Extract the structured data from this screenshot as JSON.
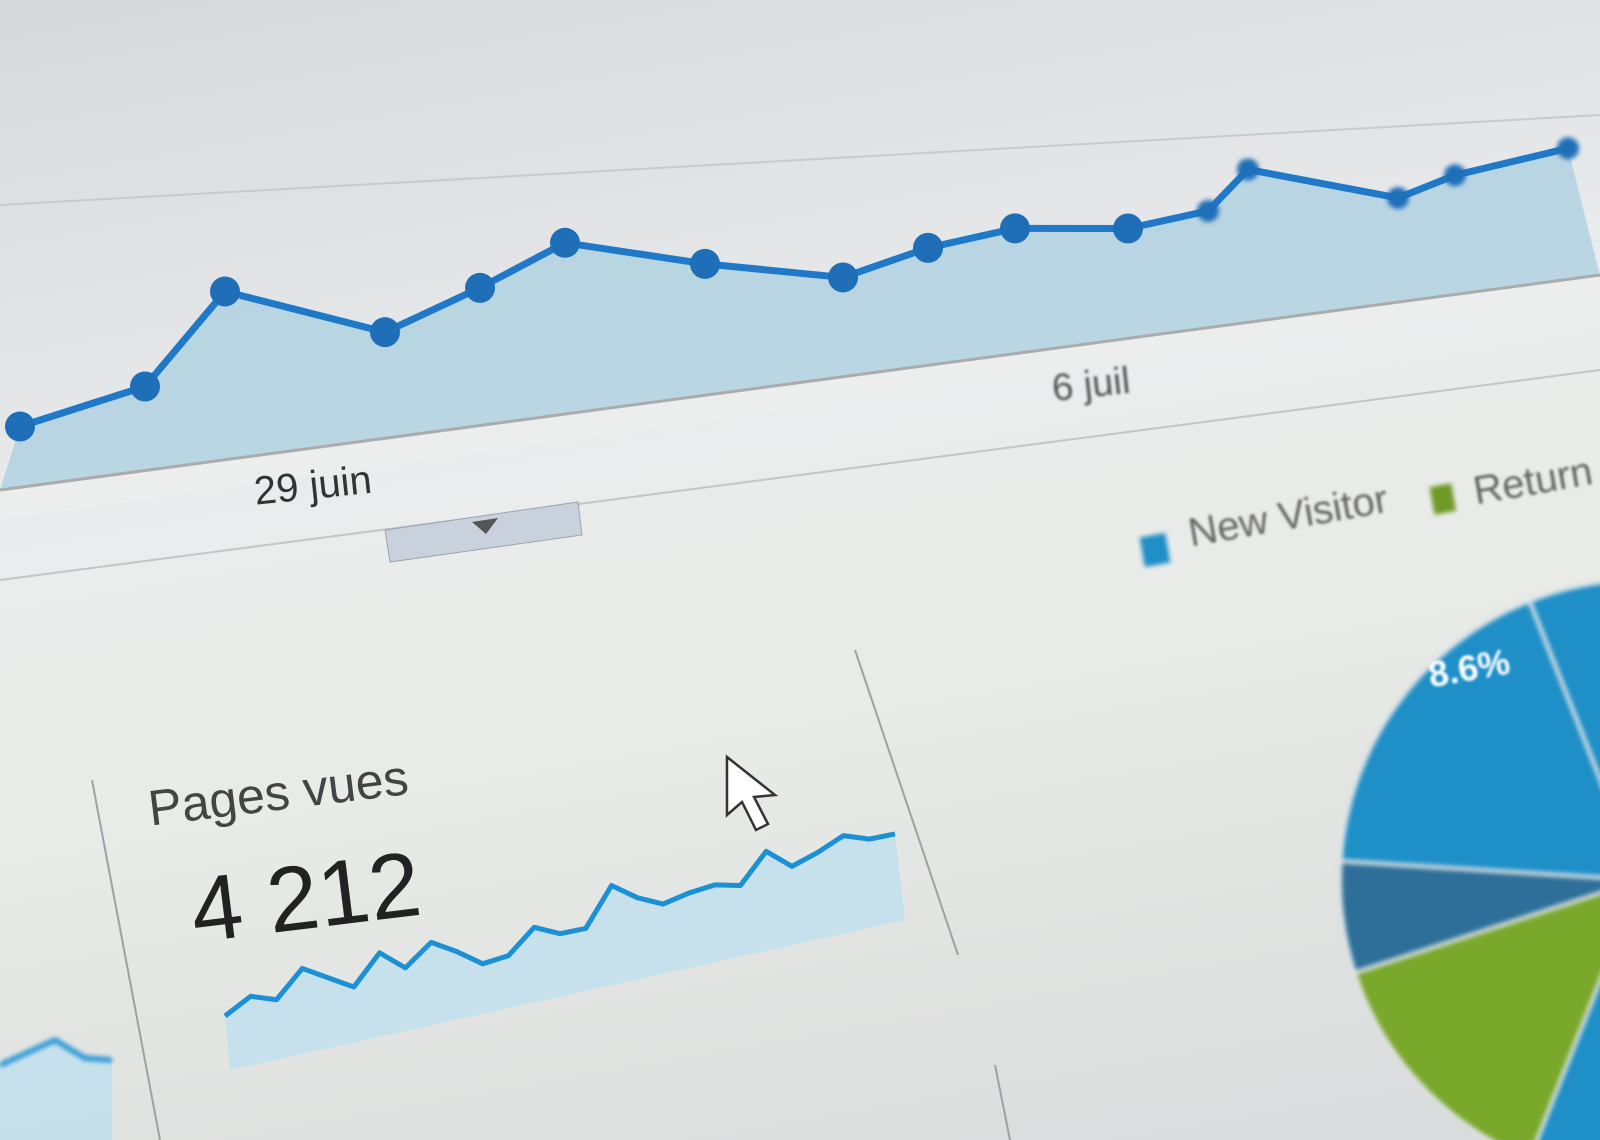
{
  "chart_data": [
    {
      "type": "area",
      "title": "",
      "x_tick_labels": [
        "29 juin",
        "6 juil"
      ],
      "values": [
        12,
        22,
        58,
        34,
        50,
        68,
        52,
        38,
        50,
        57,
        51,
        58,
        84,
        56,
        70,
        86
      ],
      "grid": true,
      "line_color": "#1f78c8",
      "fill_color": "#a9cfe0"
    },
    {
      "type": "line",
      "title": "Pages vues",
      "total": "4 212",
      "values": [
        10,
        16,
        14,
        24,
        20,
        16,
        27,
        21,
        29,
        25,
        20,
        22,
        31,
        28,
        29,
        43,
        38,
        35,
        38,
        40,
        39,
        50,
        44,
        48,
        53,
        51,
        52
      ],
      "line_color": "#1b90d4"
    },
    {
      "type": "pie",
      "legend": [
        "New Visitor",
        "Returning Visitor"
      ],
      "legend_visible_text": [
        "New Visitor",
        "Return"
      ],
      "slice_label": "8.6%",
      "colors": [
        "#1e8fc7",
        "#7aa82b",
        "#2d6f99"
      ],
      "legend_placement": "top"
    }
  ],
  "main_chart": {
    "x_label_1": "29 juin",
    "x_label_2": "6 juil",
    "dropdown_icon": "caret-down-icon"
  },
  "card": {
    "title": "Pages vues",
    "value": "4 212"
  },
  "pie": {
    "legend_new": "New Visitor",
    "legend_returning": "Return",
    "slice_label": "8.6%"
  },
  "cursor": "arrow-cursor-icon"
}
